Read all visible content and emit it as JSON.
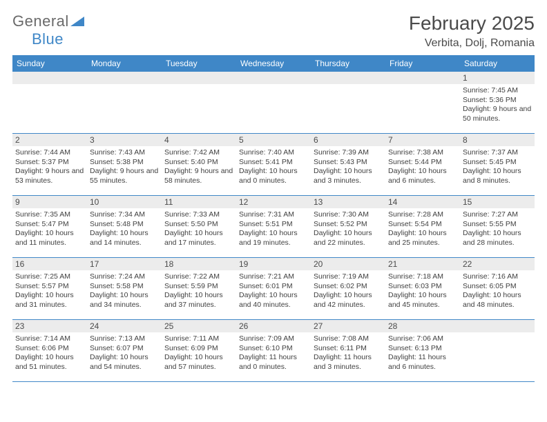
{
  "logo": {
    "text_top": "General",
    "text_bottom": "Blue",
    "triangle_color": "#3f87c7"
  },
  "title": "February 2025",
  "location": "Verbita, Dolj, Romania",
  "colors": {
    "header_bg": "#3f87c7",
    "header_text": "#ffffff",
    "daynum_bg": "#ececec",
    "page_bg": "#ffffff",
    "text": "#3f3f3f",
    "border": "#3f87c7"
  },
  "days_of_week": [
    "Sunday",
    "Monday",
    "Tuesday",
    "Wednesday",
    "Thursday",
    "Friday",
    "Saturday"
  ],
  "weeks": [
    [
      null,
      null,
      null,
      null,
      null,
      null,
      {
        "n": "1",
        "sunrise": "7:45 AM",
        "sunset": "5:36 PM",
        "daylight": "9 hours and 50 minutes."
      }
    ],
    [
      {
        "n": "2",
        "sunrise": "7:44 AM",
        "sunset": "5:37 PM",
        "daylight": "9 hours and 53 minutes."
      },
      {
        "n": "3",
        "sunrise": "7:43 AM",
        "sunset": "5:38 PM",
        "daylight": "9 hours and 55 minutes."
      },
      {
        "n": "4",
        "sunrise": "7:42 AM",
        "sunset": "5:40 PM",
        "daylight": "9 hours and 58 minutes."
      },
      {
        "n": "5",
        "sunrise": "7:40 AM",
        "sunset": "5:41 PM",
        "daylight": "10 hours and 0 minutes."
      },
      {
        "n": "6",
        "sunrise": "7:39 AM",
        "sunset": "5:43 PM",
        "daylight": "10 hours and 3 minutes."
      },
      {
        "n": "7",
        "sunrise": "7:38 AM",
        "sunset": "5:44 PM",
        "daylight": "10 hours and 6 minutes."
      },
      {
        "n": "8",
        "sunrise": "7:37 AM",
        "sunset": "5:45 PM",
        "daylight": "10 hours and 8 minutes."
      }
    ],
    [
      {
        "n": "9",
        "sunrise": "7:35 AM",
        "sunset": "5:47 PM",
        "daylight": "10 hours and 11 minutes."
      },
      {
        "n": "10",
        "sunrise": "7:34 AM",
        "sunset": "5:48 PM",
        "daylight": "10 hours and 14 minutes."
      },
      {
        "n": "11",
        "sunrise": "7:33 AM",
        "sunset": "5:50 PM",
        "daylight": "10 hours and 17 minutes."
      },
      {
        "n": "12",
        "sunrise": "7:31 AM",
        "sunset": "5:51 PM",
        "daylight": "10 hours and 19 minutes."
      },
      {
        "n": "13",
        "sunrise": "7:30 AM",
        "sunset": "5:52 PM",
        "daylight": "10 hours and 22 minutes."
      },
      {
        "n": "14",
        "sunrise": "7:28 AM",
        "sunset": "5:54 PM",
        "daylight": "10 hours and 25 minutes."
      },
      {
        "n": "15",
        "sunrise": "7:27 AM",
        "sunset": "5:55 PM",
        "daylight": "10 hours and 28 minutes."
      }
    ],
    [
      {
        "n": "16",
        "sunrise": "7:25 AM",
        "sunset": "5:57 PM",
        "daylight": "10 hours and 31 minutes."
      },
      {
        "n": "17",
        "sunrise": "7:24 AM",
        "sunset": "5:58 PM",
        "daylight": "10 hours and 34 minutes."
      },
      {
        "n": "18",
        "sunrise": "7:22 AM",
        "sunset": "5:59 PM",
        "daylight": "10 hours and 37 minutes."
      },
      {
        "n": "19",
        "sunrise": "7:21 AM",
        "sunset": "6:01 PM",
        "daylight": "10 hours and 40 minutes."
      },
      {
        "n": "20",
        "sunrise": "7:19 AM",
        "sunset": "6:02 PM",
        "daylight": "10 hours and 42 minutes."
      },
      {
        "n": "21",
        "sunrise": "7:18 AM",
        "sunset": "6:03 PM",
        "daylight": "10 hours and 45 minutes."
      },
      {
        "n": "22",
        "sunrise": "7:16 AM",
        "sunset": "6:05 PM",
        "daylight": "10 hours and 48 minutes."
      }
    ],
    [
      {
        "n": "23",
        "sunrise": "7:14 AM",
        "sunset": "6:06 PM",
        "daylight": "10 hours and 51 minutes."
      },
      {
        "n": "24",
        "sunrise": "7:13 AM",
        "sunset": "6:07 PM",
        "daylight": "10 hours and 54 minutes."
      },
      {
        "n": "25",
        "sunrise": "7:11 AM",
        "sunset": "6:09 PM",
        "daylight": "10 hours and 57 minutes."
      },
      {
        "n": "26",
        "sunrise": "7:09 AM",
        "sunset": "6:10 PM",
        "daylight": "11 hours and 0 minutes."
      },
      {
        "n": "27",
        "sunrise": "7:08 AM",
        "sunset": "6:11 PM",
        "daylight": "11 hours and 3 minutes."
      },
      {
        "n": "28",
        "sunrise": "7:06 AM",
        "sunset": "6:13 PM",
        "daylight": "11 hours and 6 minutes."
      },
      null
    ]
  ],
  "labels": {
    "sunrise": "Sunrise:",
    "sunset": "Sunset:",
    "daylight": "Daylight:"
  }
}
